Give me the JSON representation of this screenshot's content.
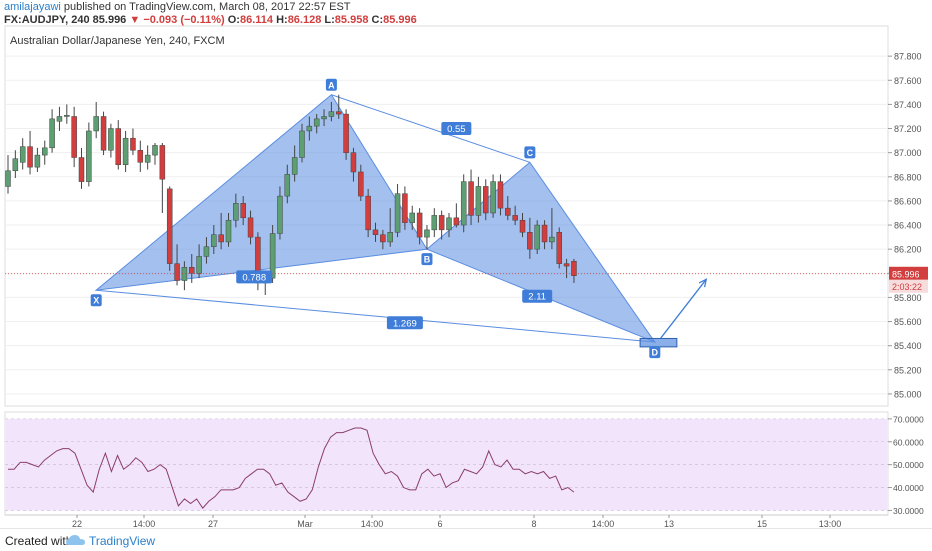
{
  "header": {
    "author": "amilajayawi",
    "published": " published on TradingView.com, March 08, 2017 22:57 EST",
    "symbol": "FX:AUDJPY, 240",
    "last": "85.996",
    "change": "▼ −0.093 (−0.11%)",
    "ohlc_o_label": "O:",
    "ohlc_o": "86.114",
    "ohlc_h_label": "H:",
    "ohlc_h": "86.128",
    "ohlc_l_label": "L:",
    "ohlc_l": "85.958",
    "ohlc_c_label": "C:",
    "ohlc_c": "85.996"
  },
  "colors": {
    "up": "#5d9e72",
    "down": "#d23d3d",
    "pattern_fill": "#5a8de0",
    "label_bg": "#3f7dd8",
    "rsi_line": "#8b3d6c",
    "rsi_band": "#f1e4fb",
    "price_line": "#d23d3d"
  },
  "chart_data": [
    {
      "type": "candlestick",
      "title": "Australian Dollar/Japanese Yen, 240, FXCM",
      "ylim": [
        84.9,
        88.05
      ],
      "y_ticks": [
        "87.800",
        "87.600",
        "87.400",
        "87.200",
        "87.000",
        "86.800",
        "86.600",
        "86.400",
        "86.200",
        "86.000",
        "85.800",
        "85.600",
        "85.400",
        "85.200",
        "85.000"
      ],
      "x_ticks": [
        "22",
        "14:00",
        "27",
        "Mar",
        "14:00",
        "6",
        "8",
        "14:00",
        "13",
        "15",
        "13:00"
      ],
      "candles": [
        {
          "o": 86.72,
          "h": 86.98,
          "l": 86.66,
          "c": 86.85
        },
        {
          "o": 86.85,
          "h": 87.02,
          "l": 86.79,
          "c": 86.95
        },
        {
          "o": 86.92,
          "h": 87.12,
          "l": 86.86,
          "c": 87.05
        },
        {
          "o": 87.05,
          "h": 87.18,
          "l": 86.82,
          "c": 86.88
        },
        {
          "o": 86.88,
          "h": 87.04,
          "l": 86.84,
          "c": 86.98
        },
        {
          "o": 86.98,
          "h": 87.1,
          "l": 86.9,
          "c": 87.04
        },
        {
          "o": 87.04,
          "h": 87.36,
          "l": 87.0,
          "c": 87.28
        },
        {
          "o": 87.26,
          "h": 87.38,
          "l": 87.18,
          "c": 87.3
        },
        {
          "o": 87.3,
          "h": 87.4,
          "l": 87.24,
          "c": 87.31
        },
        {
          "o": 87.3,
          "h": 87.38,
          "l": 86.88,
          "c": 86.96
        },
        {
          "o": 86.96,
          "h": 87.04,
          "l": 86.7,
          "c": 86.76
        },
        {
          "o": 86.76,
          "h": 87.25,
          "l": 86.72,
          "c": 87.18
        },
        {
          "o": 87.18,
          "h": 87.42,
          "l": 87.12,
          "c": 87.3
        },
        {
          "o": 87.3,
          "h": 87.34,
          "l": 86.98,
          "c": 87.02
        },
        {
          "o": 87.02,
          "h": 87.24,
          "l": 86.96,
          "c": 87.2
        },
        {
          "o": 87.2,
          "h": 87.27,
          "l": 86.86,
          "c": 86.9
        },
        {
          "o": 86.9,
          "h": 87.18,
          "l": 86.84,
          "c": 87.12
        },
        {
          "o": 87.12,
          "h": 87.2,
          "l": 86.98,
          "c": 87.02
        },
        {
          "o": 87.02,
          "h": 87.1,
          "l": 86.84,
          "c": 86.92
        },
        {
          "o": 86.92,
          "h": 87.06,
          "l": 86.86,
          "c": 86.98
        },
        {
          "o": 86.98,
          "h": 87.08,
          "l": 86.9,
          "c": 87.06
        },
        {
          "o": 87.06,
          "h": 87.08,
          "l": 86.5,
          "c": 86.78
        },
        {
          "o": 86.7,
          "h": 86.72,
          "l": 86.02,
          "c": 86.08
        },
        {
          "o": 86.08,
          "h": 86.24,
          "l": 85.9,
          "c": 85.94
        },
        {
          "o": 85.94,
          "h": 86.1,
          "l": 85.86,
          "c": 86.05
        },
        {
          "o": 86.05,
          "h": 86.16,
          "l": 85.92,
          "c": 86.0
        },
        {
          "o": 86.0,
          "h": 86.24,
          "l": 85.96,
          "c": 86.14
        },
        {
          "o": 86.14,
          "h": 86.3,
          "l": 86.08,
          "c": 86.22
        },
        {
          "o": 86.22,
          "h": 86.4,
          "l": 86.16,
          "c": 86.32
        },
        {
          "o": 86.32,
          "h": 86.5,
          "l": 86.2,
          "c": 86.26
        },
        {
          "o": 86.26,
          "h": 86.5,
          "l": 86.22,
          "c": 86.44
        },
        {
          "o": 86.44,
          "h": 86.66,
          "l": 86.38,
          "c": 86.58
        },
        {
          "o": 86.58,
          "h": 86.64,
          "l": 86.4,
          "c": 86.46
        },
        {
          "o": 86.46,
          "h": 86.52,
          "l": 86.24,
          "c": 86.3
        },
        {
          "o": 86.3,
          "h": 86.34,
          "l": 85.86,
          "c": 85.92
        },
        {
          "o": 85.92,
          "h": 86.0,
          "l": 85.82,
          "c": 85.96
        },
        {
          "o": 85.96,
          "h": 86.4,
          "l": 85.92,
          "c": 86.33
        },
        {
          "o": 86.33,
          "h": 86.72,
          "l": 86.28,
          "c": 86.64
        },
        {
          "o": 86.64,
          "h": 86.9,
          "l": 86.58,
          "c": 86.82
        },
        {
          "o": 86.82,
          "h": 87.06,
          "l": 86.76,
          "c": 86.96
        },
        {
          "o": 86.96,
          "h": 87.24,
          "l": 86.92,
          "c": 87.18
        },
        {
          "o": 87.18,
          "h": 87.3,
          "l": 87.1,
          "c": 87.22
        },
        {
          "o": 87.22,
          "h": 87.32,
          "l": 87.16,
          "c": 87.28
        },
        {
          "o": 87.28,
          "h": 87.36,
          "l": 87.22,
          "c": 87.3
        },
        {
          "o": 87.3,
          "h": 87.42,
          "l": 87.26,
          "c": 87.34
        },
        {
          "o": 87.34,
          "h": 87.48,
          "l": 87.28,
          "c": 87.32
        },
        {
          "o": 87.32,
          "h": 87.36,
          "l": 86.94,
          "c": 87.0
        },
        {
          "o": 87.0,
          "h": 87.04,
          "l": 86.76,
          "c": 86.84
        },
        {
          "o": 86.84,
          "h": 86.9,
          "l": 86.6,
          "c": 86.64
        },
        {
          "o": 86.64,
          "h": 86.7,
          "l": 86.3,
          "c": 86.36
        },
        {
          "o": 86.36,
          "h": 86.42,
          "l": 86.26,
          "c": 86.32
        },
        {
          "o": 86.32,
          "h": 86.36,
          "l": 86.2,
          "c": 86.26
        },
        {
          "o": 86.26,
          "h": 86.54,
          "l": 86.22,
          "c": 86.34
        },
        {
          "o": 86.34,
          "h": 86.74,
          "l": 86.3,
          "c": 86.66
        },
        {
          "o": 86.66,
          "h": 86.72,
          "l": 86.36,
          "c": 86.42
        },
        {
          "o": 86.42,
          "h": 86.56,
          "l": 86.36,
          "c": 86.5
        },
        {
          "o": 86.5,
          "h": 86.54,
          "l": 86.24,
          "c": 86.3
        },
        {
          "o": 86.3,
          "h": 86.4,
          "l": 86.2,
          "c": 86.36
        },
        {
          "o": 86.36,
          "h": 86.54,
          "l": 86.3,
          "c": 86.48
        },
        {
          "o": 86.48,
          "h": 86.52,
          "l": 86.28,
          "c": 86.36
        },
        {
          "o": 86.36,
          "h": 86.5,
          "l": 86.3,
          "c": 86.46
        },
        {
          "o": 86.46,
          "h": 86.58,
          "l": 86.38,
          "c": 86.4
        },
        {
          "o": 86.4,
          "h": 86.82,
          "l": 86.34,
          "c": 86.76
        },
        {
          "o": 86.76,
          "h": 86.86,
          "l": 86.4,
          "c": 86.48
        },
        {
          "o": 86.48,
          "h": 86.8,
          "l": 86.42,
          "c": 86.72
        },
        {
          "o": 86.72,
          "h": 86.78,
          "l": 86.44,
          "c": 86.5
        },
        {
          "o": 86.5,
          "h": 86.82,
          "l": 86.46,
          "c": 86.76
        },
        {
          "o": 86.76,
          "h": 86.82,
          "l": 86.48,
          "c": 86.54
        },
        {
          "o": 86.54,
          "h": 86.64,
          "l": 86.44,
          "c": 86.48
        },
        {
          "o": 86.48,
          "h": 86.56,
          "l": 86.4,
          "c": 86.44
        },
        {
          "o": 86.44,
          "h": 86.5,
          "l": 86.3,
          "c": 86.34
        },
        {
          "o": 86.34,
          "h": 86.46,
          "l": 86.12,
          "c": 86.2
        },
        {
          "o": 86.2,
          "h": 86.44,
          "l": 86.16,
          "c": 86.4
        },
        {
          "o": 86.4,
          "h": 86.44,
          "l": 86.2,
          "c": 86.26
        },
        {
          "o": 86.26,
          "h": 86.54,
          "l": 86.2,
          "c": 86.3
        },
        {
          "o": 86.34,
          "h": 86.38,
          "l": 86.04,
          "c": 86.08
        },
        {
          "o": 86.08,
          "h": 86.12,
          "l": 85.96,
          "c": 86.06
        },
        {
          "o": 86.1,
          "h": 86.12,
          "l": 85.92,
          "c": 85.98
        }
      ],
      "current_price": 85.996,
      "price_tag": "85.996",
      "timer_tag": "2:03:22",
      "pattern": {
        "points": [
          {
            "label": "X",
            "x": 12,
            "y": 85.86
          },
          {
            "label": "A",
            "x": 44,
            "y": 87.48
          },
          {
            "label": "B",
            "x": 57,
            "y": 86.2
          },
          {
            "label": "C",
            "x": 71,
            "y": 86.92
          },
          {
            "label": "D",
            "x": 88,
            "y": 85.43
          }
        ],
        "ratios": [
          {
            "text": "0.788",
            "x": 33.5,
            "y": 85.97
          },
          {
            "text": "0.55",
            "x": 61,
            "y": 87.2
          },
          {
            "text": "2.11",
            "x": 72,
            "y": 85.81
          },
          {
            "text": "1.269",
            "x": 54,
            "y": 85.59
          }
        ],
        "target_box": {
          "x0": 86,
          "x1": 91,
          "y0": 85.39,
          "y1": 85.46
        },
        "projection_arrow": {
          "from": {
            "x": 88,
            "y": 85.43
          },
          "to": {
            "x": 95,
            "y": 85.95
          }
        }
      }
    },
    {
      "type": "line",
      "indicator": "RSI",
      "ylim": [
        28,
        73
      ],
      "y_ticks": [
        "70.0000",
        "60.0000",
        "50.0000",
        "40.0000",
        "30.0000"
      ],
      "band": [
        30,
        70
      ],
      "values": [
        48,
        48,
        51,
        51,
        50,
        49,
        52,
        54,
        56,
        57,
        57,
        55,
        48,
        41,
        38,
        48,
        55,
        47,
        54,
        48,
        50,
        53,
        51,
        47,
        48,
        50,
        48,
        40,
        32,
        35,
        33,
        35,
        31,
        34,
        36,
        39,
        39,
        39,
        40,
        44,
        46,
        48,
        48,
        46,
        41,
        42,
        38,
        36,
        34,
        35,
        39,
        49,
        57,
        62,
        64,
        64,
        65,
        66,
        66,
        65,
        55,
        50,
        46,
        47,
        45,
        40,
        39,
        39,
        46,
        48,
        45,
        46,
        40,
        42,
        43,
        48,
        47,
        46,
        49,
        56,
        50,
        49,
        52,
        48,
        48,
        46,
        47,
        46,
        47,
        44,
        45,
        39,
        40,
        38
      ]
    }
  ]
}
